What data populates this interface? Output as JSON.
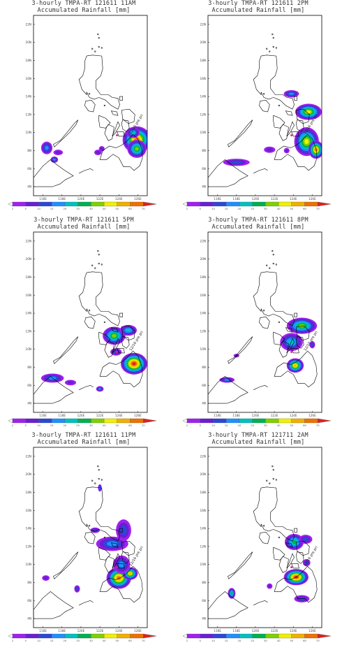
{
  "colors": {
    "scale": [
      "#ffffff",
      "#a020f0",
      "#6a1fd1",
      "#2b48d6",
      "#1e90ff",
      "#00c0c0",
      "#00b050",
      "#7fd000",
      "#f0f000",
      "#f0b000",
      "#f07000",
      "#e02020"
    ],
    "coastline": "#000000",
    "frame": "#000000"
  },
  "map": {
    "lat_ticks": [
      "22N",
      "20N",
      "18N",
      "16N",
      "14N",
      "12N",
      "10N",
      "8N",
      "6N",
      "4N"
    ],
    "lon_ticks": [
      "116E",
      "118E",
      "120E",
      "122E",
      "124E",
      "126E"
    ],
    "colorbar_ticks": [
      "2",
      "5",
      "10",
      "15",
      "20",
      "25",
      "30",
      "40",
      "50",
      "60",
      "70"
    ],
    "annotation": "12/16 pre pri"
  },
  "panels": [
    {
      "line1": "3-hourly TMPA-RT 121611 11AM",
      "line2": "Accumulated Rainfall [mm]"
    },
    {
      "line1": "3-hourly TMPA-RT 121611 2PM",
      "line2": "Accumulated Rainfall [mm]"
    },
    {
      "line1": "3-hourly TMPA-RT 121611 5PM",
      "line2": "Accumulated Rainfall [mm]"
    },
    {
      "line1": "3-hourly TMPA-RT 121611 8PM",
      "line2": "Accumulated Rainfall [mm]"
    },
    {
      "line1": "3-hourly TMPA-RT 121611 11PM",
      "line2": "Accumulated Rainfall [mm]"
    },
    {
      "line1": "3-hourly TMPA-RT 121711 2AM",
      "line2": "Accumulated Rainfall [mm]"
    }
  ]
}
